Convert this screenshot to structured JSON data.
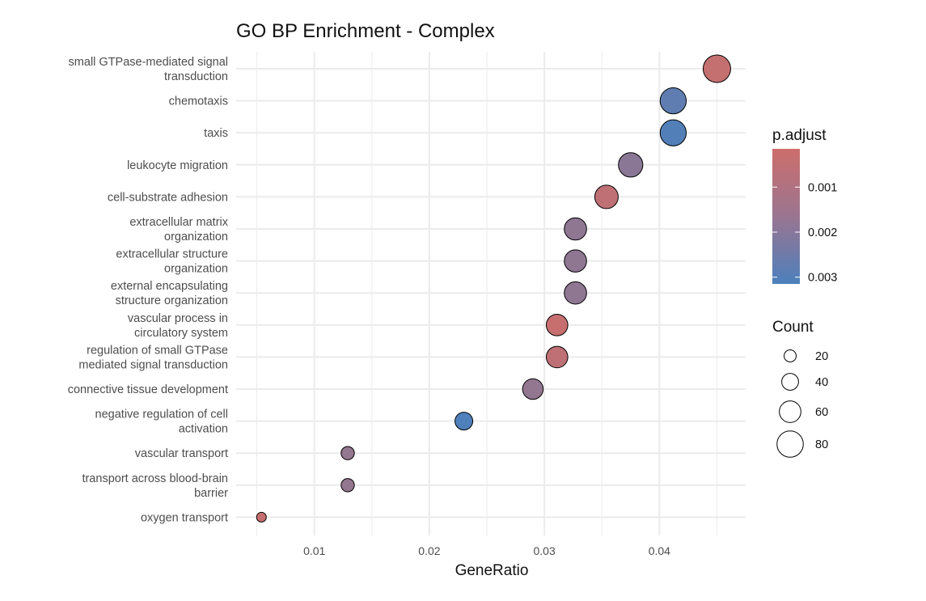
{
  "chart_data": {
    "type": "scatter",
    "title": "GO BP Enrichment - Complex",
    "xlabel": "GeneRatio",
    "ylabel": "",
    "xlim": [
      0.0032,
      0.0475
    ],
    "x_ticks": [
      0.01,
      0.02,
      0.03,
      0.04
    ],
    "x_tick_labels": [
      "0.01",
      "0.02",
      "0.03",
      "0.04"
    ],
    "grid": true,
    "colors": {
      "low_padj": "#CD6E6B",
      "high_padj": "#4C80BC",
      "bubble_outline": "#000000",
      "grid": "#EBEBEB"
    },
    "terms": [
      {
        "label": [
          "small GTPase-mediated signal",
          "transduction"
        ],
        "gene_ratio": 0.045,
        "count": 85,
        "p_adjust": 0.00035
      },
      {
        "label": [
          "chemotaxis"
        ],
        "gene_ratio": 0.0412,
        "count": 79,
        "p_adjust": 0.0027
      },
      {
        "label": [
          "taxis"
        ],
        "gene_ratio": 0.0412,
        "count": 79,
        "p_adjust": 0.003
      },
      {
        "label": [
          "leukocyte migration"
        ],
        "gene_ratio": 0.0375,
        "count": 72,
        "p_adjust": 0.0017
      },
      {
        "label": [
          "cell-substrate adhesion"
        ],
        "gene_ratio": 0.0354,
        "count": 68,
        "p_adjust": 0.0005
      },
      {
        "label": [
          "extracellular matrix",
          "organization"
        ],
        "gene_ratio": 0.0327,
        "count": 63,
        "p_adjust": 0.0016
      },
      {
        "label": [
          "extracellular structure",
          "organization"
        ],
        "gene_ratio": 0.0327,
        "count": 63,
        "p_adjust": 0.0016
      },
      {
        "label": [
          "external encapsulating",
          "structure organization"
        ],
        "gene_ratio": 0.0327,
        "count": 63,
        "p_adjust": 0.0016
      },
      {
        "label": [
          "vascular process in",
          "circulatory system"
        ],
        "gene_ratio": 0.0311,
        "count": 60,
        "p_adjust": 0.0003
      },
      {
        "label": [
          "regulation of small GTPase",
          "mediated signal transduction"
        ],
        "gene_ratio": 0.0311,
        "count": 60,
        "p_adjust": 0.0005
      },
      {
        "label": [
          "connective tissue development"
        ],
        "gene_ratio": 0.029,
        "count": 56,
        "p_adjust": 0.0015
      },
      {
        "label": [
          "negative regulation of cell",
          "activation"
        ],
        "gene_ratio": 0.023,
        "count": 44,
        "p_adjust": 0.0031
      },
      {
        "label": [
          "vascular transport"
        ],
        "gene_ratio": 0.0129,
        "count": 25,
        "p_adjust": 0.0015
      },
      {
        "label": [
          "transport across blood-brain",
          "barrier"
        ],
        "gene_ratio": 0.0129,
        "count": 25,
        "p_adjust": 0.0015
      },
      {
        "label": [
          "oxygen transport"
        ],
        "gene_ratio": 0.0054,
        "count": 10,
        "p_adjust": 0.0003
      }
    ],
    "color_legend": {
      "title": "p.adjust",
      "placement": "right",
      "range": [
        0.00015,
        0.00315
      ],
      "ticks": [
        0.001,
        0.002,
        0.003
      ],
      "tick_labels": [
        "0.001",
        "0.002",
        "0.003"
      ]
    },
    "size_legend": {
      "title": "Count",
      "placement": "right",
      "values": [
        20,
        40,
        60,
        80
      ],
      "labels": [
        "20",
        "40",
        "60",
        "80"
      ],
      "size_domain": [
        10,
        85
      ]
    }
  }
}
